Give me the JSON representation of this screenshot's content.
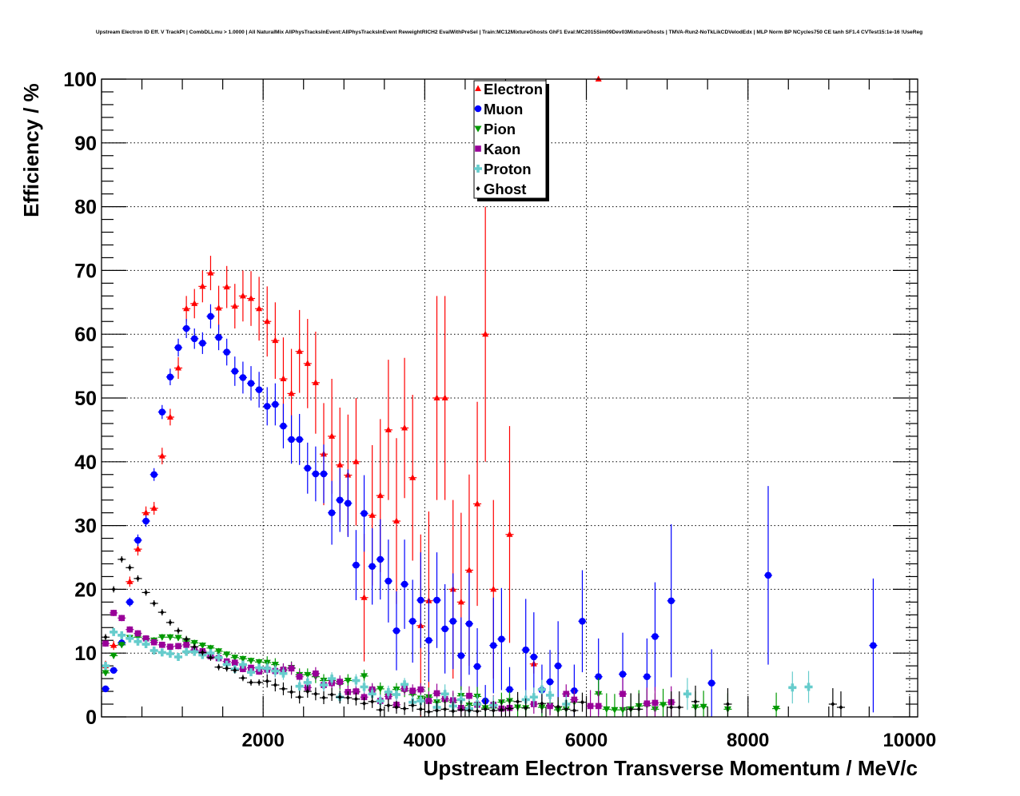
{
  "chart_data": {
    "type": "scatter",
    "title": "Upstream Electron ID Eff. V TrackPt | CombDLLmu > 1.0000 | All NaturalMix AllPhysTracksInEvent:AllPhysTracksInEvent ReweightRICH2 EvalWithPreSel | Train:MC12MixtureGhosts GhF1 Eval:MC2015Sim09Dev03MixtureGhosts | TMVA-Run2-NoTkLikCDVelodEdx | MLP Norm BP NCycles750 CE tanh SF1.4 CVTest15:1e-16 !UseReg",
    "xlabel": "Upstream Electron Transverse Momentum / MeV/c",
    "ylabel": "Efficiency / %",
    "xlim": [
      0,
      10100
    ],
    "ylim": [
      0,
      100
    ],
    "grid": true,
    "legend_position": "top-center",
    "x_bin_start": 50,
    "x_bin_width": 100,
    "x_half_width": 50,
    "x_ticks": [
      {
        "value": 2000,
        "label": "2000"
      },
      {
        "value": 4000,
        "label": "4000"
      },
      {
        "value": 6000,
        "label": "6000"
      },
      {
        "value": 8000,
        "label": "8000"
      },
      {
        "value": 10000,
        "label": "10000"
      }
    ],
    "y_ticks": [
      {
        "value": 0,
        "label": "0"
      },
      {
        "value": 10,
        "label": "10"
      },
      {
        "value": 20,
        "label": "20"
      },
      {
        "value": 30,
        "label": "30"
      },
      {
        "value": 40,
        "label": "40"
      },
      {
        "value": 50,
        "label": "50"
      },
      {
        "value": 60,
        "label": "60"
      },
      {
        "value": 70,
        "label": "70"
      },
      {
        "value": 80,
        "label": "80"
      },
      {
        "value": 90,
        "label": "90"
      },
      {
        "value": 100,
        "label": "100"
      }
    ],
    "series": [
      {
        "name": "Electron",
        "color": "#ff0000",
        "marker": "triangle-up",
        "y": [
          8.0,
          11.2,
          null,
          21.2,
          26.3,
          32,
          32.7,
          40.9,
          47,
          54.7,
          64,
          64.8,
          67.5,
          69.6,
          64.1,
          67.4,
          64.4,
          66,
          65.6,
          64,
          62,
          59,
          53,
          50.7,
          57.3,
          55.4,
          52.4,
          41.2,
          44,
          39.5,
          37.9,
          40,
          18.7,
          31.6,
          34.7,
          45,
          30.7,
          45.3,
          37.5,
          14.3,
          18.2,
          50,
          50,
          20,
          18,
          23,
          33.4,
          60,
          20,
          null,
          28.6,
          null,
          null,
          8.3,
          null,
          null,
          null,
          null,
          null,
          null,
          null,
          100
        ],
        "err": [
          0.8,
          0.7,
          0,
          0.8,
          1,
          1,
          1,
          1.3,
          1.3,
          1.7,
          2,
          2.3,
          2.5,
          2.7,
          3.5,
          3.3,
          3.5,
          4,
          4.3,
          5,
          5.5,
          6,
          6.5,
          7,
          6.5,
          7,
          8,
          8,
          9,
          9,
          9.5,
          10,
          10,
          11,
          12,
          11,
          13,
          11,
          13,
          14.3,
          14,
          16,
          16,
          14,
          14,
          15,
          16,
          20,
          14,
          0,
          17,
          0,
          0,
          1.5,
          0,
          0,
          0,
          0,
          0,
          0,
          0,
          0
        ]
      },
      {
        "name": "Muon",
        "color": "#0000ff",
        "marker": "circle",
        "y": [
          4.4,
          7.3,
          11.6,
          18,
          27.7,
          30.7,
          38,
          47.8,
          53.3,
          57.9,
          60.9,
          59.3,
          58.6,
          62.8,
          59.5,
          57.2,
          54.2,
          53.2,
          52.3,
          51.3,
          48.7,
          49,
          45.6,
          43.5,
          43.5,
          39,
          38.1,
          38.1,
          32,
          34,
          33.5,
          23.8,
          31.9,
          23.6,
          24.7,
          21.3,
          13.5,
          20.8,
          15,
          18.3,
          12,
          18.3,
          13.8,
          15,
          9.6,
          14.6,
          7.9,
          2.5,
          11.2,
          12.2,
          4.3,
          null,
          10.5,
          9.4,
          4.2,
          5.5,
          8,
          null,
          4.1,
          15,
          null,
          6.3,
          null,
          null,
          6.7,
          null,
          null,
          6.3,
          12.6,
          null,
          18.2,
          null,
          null,
          null,
          null,
          5.3,
          null,
          null,
          null,
          null,
          null,
          null,
          22.2,
          null,
          null,
          null,
          null,
          null,
          null,
          null,
          null,
          null,
          null,
          null,
          null,
          11.2
        ],
        "err": [
          0.4,
          0.5,
          0.6,
          0.7,
          0.9,
          0.9,
          1,
          1.1,
          1.3,
          1.4,
          1.5,
          1.6,
          1.7,
          1.9,
          2,
          2.1,
          2.3,
          2.5,
          2.7,
          2.8,
          3,
          3.3,
          3.5,
          3.8,
          4,
          4,
          4.3,
          4.6,
          5,
          5,
          5.3,
          5.5,
          6,
          6,
          6.3,
          6.5,
          6.2,
          7,
          6.5,
          7.5,
          6.5,
          7.5,
          7,
          7.5,
          6,
          8,
          6,
          2.5,
          7.5,
          8,
          3.5,
          0,
          8,
          7,
          4,
          5,
          7,
          0,
          4.1,
          8,
          0,
          6,
          0,
          0,
          6.5,
          0,
          0,
          6,
          8.5,
          0,
          12,
          0,
          0,
          0,
          0,
          5.3,
          0,
          0,
          0,
          0,
          0,
          0,
          14,
          0,
          0,
          0,
          0,
          0,
          0,
          0,
          0,
          0,
          0,
          0,
          0,
          10.5
        ]
      },
      {
        "name": "Pion",
        "color": "#009900",
        "marker": "triangle-down",
        "y": [
          6.9,
          9.6,
          11.3,
          12.4,
          12.5,
          12.2,
          12,
          12.5,
          12.5,
          12.4,
          11.9,
          11.6,
          11.2,
          10.8,
          10.3,
          9.8,
          9.3,
          9.1,
          8.8,
          8.6,
          8.5,
          8.2,
          7.3,
          7.7,
          6.6,
          6.6,
          6.3,
          5.7,
          5.7,
          5.2,
          5.7,
          3.9,
          6.4,
          4.1,
          4.4,
          3.5,
          4.3,
          4.1,
          3.5,
          2.9,
          3.1,
          2.3,
          2.5,
          2.3,
          3.3,
          1.8,
          3.2,
          1.4,
          1.4,
          2.3,
          2.5,
          1.5,
          1.4,
          null,
          1.5,
          1.8,
          1.1,
          1.2,
          2.3,
          null,
          null,
          3.6,
          1.2,
          1.1,
          1.1,
          1.2,
          1.7,
          1.8,
          1.2,
          1.9,
          null,
          null,
          null,
          1.5,
          1.6,
          null,
          null,
          1.2,
          null,
          null,
          null,
          null,
          null,
          1.3
        ],
        "err": []
      },
      {
        "name": "Kaon",
        "color": "#990099",
        "marker": "square",
        "y": [
          11.5,
          16.3,
          15.5,
          13.7,
          13.1,
          12.3,
          11.7,
          11.3,
          11,
          11.1,
          11.3,
          10.5,
          10.3,
          9.5,
          9.2,
          8.7,
          8.5,
          7.5,
          7.7,
          7.1,
          7.4,
          7.2,
          7.4,
          7.6,
          6.3,
          4.6,
          6.8,
          5.0,
          5.3,
          5.5,
          3.9,
          4.0,
          3.1,
          4.3,
          2.5,
          3.2,
          1.9,
          4.4,
          4.1,
          4.3,
          2.5,
          3.7,
          2.8,
          2.6,
          1.4,
          3.3,
          1.9,
          null,
          1.9,
          1.3,
          1.4,
          null,
          null,
          2.0,
          null,
          1.7,
          null,
          3.6,
          2.7,
          null,
          1.7,
          1.7,
          null,
          null,
          3.6,
          null,
          null,
          2.1,
          2.2,
          null,
          2.3
        ],
        "err": []
      },
      {
        "name": "Proton",
        "color": "#66cccc",
        "marker": "cross",
        "y": [
          8,
          13.3,
          12.8,
          12.3,
          11.8,
          11.4,
          10.4,
          10.1,
          9.9,
          9.4,
          10.2,
          10.2,
          9.7,
          10,
          9.3,
          8.2,
          7.5,
          8.2,
          7,
          7.7,
          7.6,
          7.2,
          6.8,
          null,
          4.8,
          5.4,
          null,
          5.0,
          6.0,
          3.1,
          null,
          5.7,
          4.7,
          3.6,
          2.5,
          3.9,
          3.5,
          5.1,
          2.3,
          2.5,
          null,
          1.5,
          3.6,
          1.7,
          2.7,
          1.3,
          2.0,
          null,
          1.8,
          null,
          null,
          null,
          2.7,
          3.1,
          4.3,
          3.4,
          null,
          2.0,
          null,
          null,
          null,
          null,
          null,
          null,
          null,
          null,
          null,
          null,
          null,
          null,
          null,
          null,
          3.6,
          null,
          null,
          null,
          null,
          null,
          null,
          null,
          null,
          null,
          null,
          null,
          null,
          4.6,
          null,
          4.7
        ],
        "err": []
      },
      {
        "name": "Ghost",
        "color": "#000000",
        "marker": "diamond",
        "y": [
          12.5,
          20,
          24.7,
          23.4,
          21.7,
          19.5,
          17.8,
          16.4,
          14.8,
          13.5,
          12.2,
          11,
          10.1,
          9.3,
          7.8,
          7.6,
          7.3,
          6.1,
          5.4,
          5.4,
          5.6,
          5.0,
          4.4,
          3.9,
          3.1,
          4.0,
          3.6,
          3.0,
          3.5,
          3.1,
          3.0,
          2.8,
          2.1,
          2.4,
          1.1,
          1.8,
          1.5,
          1.3,
          1.8,
          1.2,
          0.8,
          1.0,
          1.2,
          0.9,
          1.1,
          1.0,
          0.9,
          1.2,
          1.0,
          1.1,
          1.3,
          2.4,
          1.4,
          null,
          2.1,
          null,
          1.6,
          1.2,
          1.0,
          2.3,
          null,
          null,
          null,
          null,
          null,
          1.2,
          1.2,
          null,
          null,
          null,
          1.5,
          1.5,
          null,
          2.4,
          null,
          null,
          null,
          2.0,
          null,
          null,
          null,
          null,
          null,
          null,
          null,
          null,
          null,
          null,
          null,
          null,
          2.0,
          1.5
        ],
        "err": []
      }
    ]
  }
}
